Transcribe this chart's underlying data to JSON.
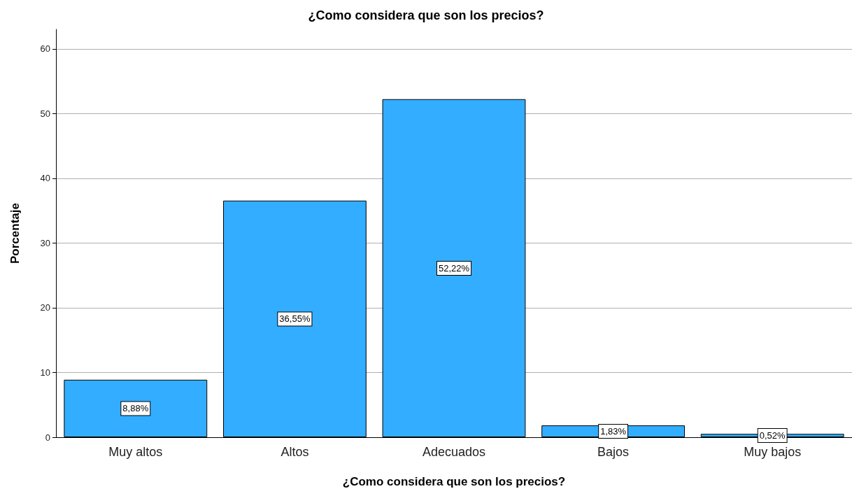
{
  "chart_data": {
    "type": "bar",
    "title": "¿Como considera que son los precios?",
    "xlabel": "¿Como considera que son los precios?",
    "ylabel": "Porcentaje",
    "categories": [
      "Muy altos",
      "Altos",
      "Adecuados",
      "Bajos",
      "Muy bajos"
    ],
    "values": [
      8.88,
      36.55,
      52.22,
      1.83,
      0.52
    ],
    "value_labels": [
      "8,88%",
      "36,55%",
      "52,22%",
      "1,83%",
      "0,52%"
    ],
    "color": "#33adff",
    "ylim": [
      0,
      63
    ],
    "yticks": [
      0,
      10,
      20,
      30,
      40,
      50,
      60
    ],
    "grid": "y"
  }
}
